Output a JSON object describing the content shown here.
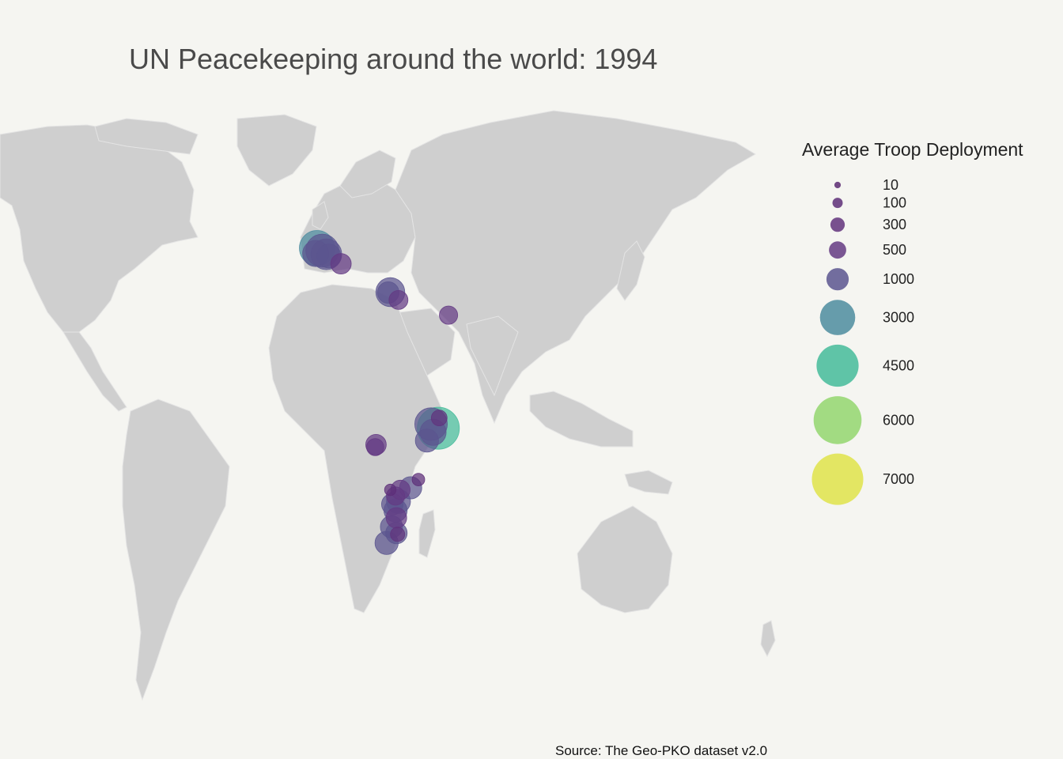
{
  "title": "UN Peacekeeping around the world: 1994",
  "caption": "Source: The Geo-PKO dataset v2.0",
  "colors": {
    "background": "#f5f5f1",
    "land": "#cfcfcf",
    "border": "#e4e4e4"
  },
  "legend": {
    "title": "Average Troop Deployment",
    "entries": [
      {
        "label": "10",
        "value": 10,
        "color": "#5b2a72"
      },
      {
        "label": "100",
        "value": 100,
        "color": "#5d2e78"
      },
      {
        "label": "300",
        "value": 300,
        "color": "#61337d"
      },
      {
        "label": "500",
        "value": 500,
        "color": "#643a83"
      },
      {
        "label": "1000",
        "value": 1000,
        "color": "#5b558f"
      },
      {
        "label": "3000",
        "value": 3000,
        "color": "#4c8c9f"
      },
      {
        "label": "4500",
        "value": 4500,
        "color": "#44bb9a"
      },
      {
        "label": "6000",
        "value": 6000,
        "color": "#93d66e"
      },
      {
        "label": "7000",
        "value": 7000,
        "color": "#dfe34a"
      }
    ]
  },
  "chart_data": {
    "type": "scatter",
    "title": "UN Peacekeeping around the world: 1994",
    "size_variable": "Average Troop Deployment",
    "color_variable": "Average Troop Deployment",
    "legend_placement": "right",
    "points": [
      {
        "lon": 15.5,
        "lat": 45.8,
        "troops": 3000
      },
      {
        "lon": 16.8,
        "lat": 45.2,
        "troops": 2600
      },
      {
        "lon": 17.8,
        "lat": 44.3,
        "troops": 2200
      },
      {
        "lon": 15.2,
        "lat": 44.5,
        "troops": 1500
      },
      {
        "lon": 18.4,
        "lat": 43.9,
        "troops": 1200
      },
      {
        "lon": 21.4,
        "lat": 42.0,
        "troops": 800
      },
      {
        "lon": 33.5,
        "lat": 35.1,
        "troops": 1900
      },
      {
        "lon": 33.0,
        "lat": 35.0,
        "troops": 900
      },
      {
        "lon": 35.5,
        "lat": 33.2,
        "troops": 650
      },
      {
        "lon": 47.8,
        "lat": 29.5,
        "troops": 600
      },
      {
        "lon": 45.3,
        "lat": 2.0,
        "troops": 4500
      },
      {
        "lon": 43.5,
        "lat": 3.0,
        "troops": 2500
      },
      {
        "lon": 44.0,
        "lat": 1.0,
        "troops": 1500
      },
      {
        "lon": 45.5,
        "lat": 4.5,
        "troops": 400
      },
      {
        "lon": 42.5,
        "lat": -1.0,
        "troops": 1100
      },
      {
        "lon": 30.0,
        "lat": -2.0,
        "troops": 800
      },
      {
        "lon": 29.8,
        "lat": -2.6,
        "troops": 500
      },
      {
        "lon": 40.4,
        "lat": -10.5,
        "troops": 200
      },
      {
        "lon": 38.5,
        "lat": -12.5,
        "troops": 1000
      },
      {
        "lon": 36.0,
        "lat": -13.0,
        "troops": 700
      },
      {
        "lon": 34.8,
        "lat": -14.5,
        "troops": 600
      },
      {
        "lon": 35.5,
        "lat": -15.8,
        "troops": 1200
      },
      {
        "lon": 34.0,
        "lat": -16.5,
        "troops": 900
      },
      {
        "lon": 34.8,
        "lat": -18.0,
        "troops": 1100
      },
      {
        "lon": 35.0,
        "lat": -19.8,
        "troops": 800
      },
      {
        "lon": 33.8,
        "lat": -22.0,
        "troops": 1000
      },
      {
        "lon": 35.0,
        "lat": -23.5,
        "troops": 900
      },
      {
        "lon": 32.6,
        "lat": -25.9,
        "troops": 1100
      },
      {
        "lon": 35.3,
        "lat": -23.8,
        "troops": 300
      },
      {
        "lon": 33.5,
        "lat": -13.0,
        "troops": 150
      }
    ]
  }
}
